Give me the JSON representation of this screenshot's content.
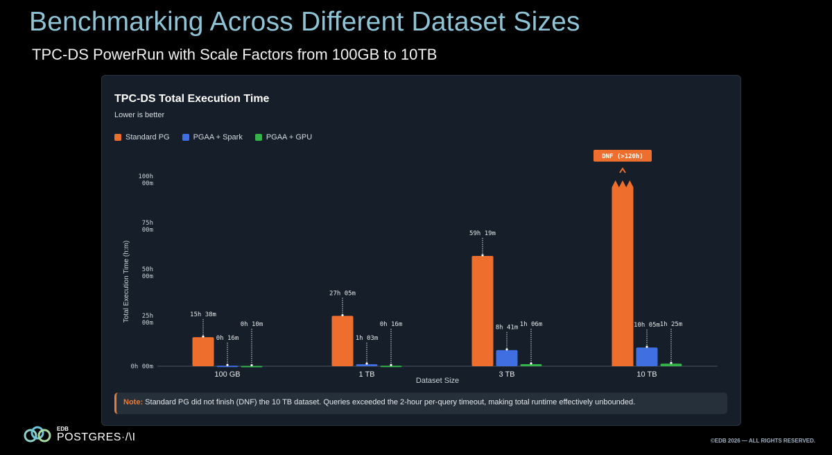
{
  "header": {
    "title": "Benchmarking Across Different Dataset Sizes",
    "subtitle": "TPC-DS PowerRun with Scale Factors from 100GB to 10TB"
  },
  "colors": {
    "standard_pg": "#ee6f2d",
    "pgaa_spark": "#3f6fe0",
    "pgaa_gpu": "#33b34a"
  },
  "chart_data": {
    "type": "bar",
    "title": "TPC-DS Total Execution Time",
    "subtitle": "Lower is better",
    "xlabel": "Dataset Size",
    "ylabel": "Total Execution Time (h:m)",
    "ylim": [
      0,
      100
    ],
    "yticks": [
      {
        "value": 0,
        "line1": "0h 00m",
        "line2": ""
      },
      {
        "value": 25,
        "line1": "25h",
        "line2": "00m"
      },
      {
        "value": 50,
        "line1": "50h",
        "line2": "00m"
      },
      {
        "value": 75,
        "line1": "75h",
        "line2": "00m"
      },
      {
        "value": 100,
        "line1": "100h",
        "line2": "00m"
      }
    ],
    "categories": [
      "100 GB",
      "1 TB",
      "3 TB",
      "10 TB"
    ],
    "legend_position": "top-left",
    "series": [
      {
        "name": "Standard PG",
        "color": "#ee6f2d",
        "values": [
          15.63,
          27.08,
          59.32,
          100
        ],
        "labels": [
          "15h 38m",
          "27h 05m",
          "59h 19m",
          "DNF (>120h)"
        ],
        "dnf": [
          false,
          false,
          false,
          true
        ]
      },
      {
        "name": "PGAA + Spark",
        "color": "#3f6fe0",
        "values": [
          0.27,
          1.05,
          8.68,
          10.08
        ],
        "labels": [
          "0h 16m",
          "1h 03m",
          "8h 41m",
          "10h 05m"
        ],
        "dnf": [
          false,
          false,
          false,
          false
        ]
      },
      {
        "name": "PGAA + GPU",
        "color": "#33b34a",
        "values": [
          0.17,
          0.27,
          1.1,
          1.42
        ],
        "labels": [
          "0h 10m",
          "0h 16m",
          "1h 06m",
          "1h 25m"
        ],
        "dnf": [
          false,
          false,
          false,
          false
        ]
      }
    ]
  },
  "note": {
    "label": "Note:",
    "text": "Standard PG did not finish (DNF) the 10 TB dataset. Queries exceeded the 2-hour per-query timeout, making total runtime effectively unbounded."
  },
  "footer": {
    "logo_small": "EDB",
    "logo_big": "POSTGRES·/\\I",
    "copyright": "©EDB 2026 — ALL RIGHTS RESERVED."
  }
}
